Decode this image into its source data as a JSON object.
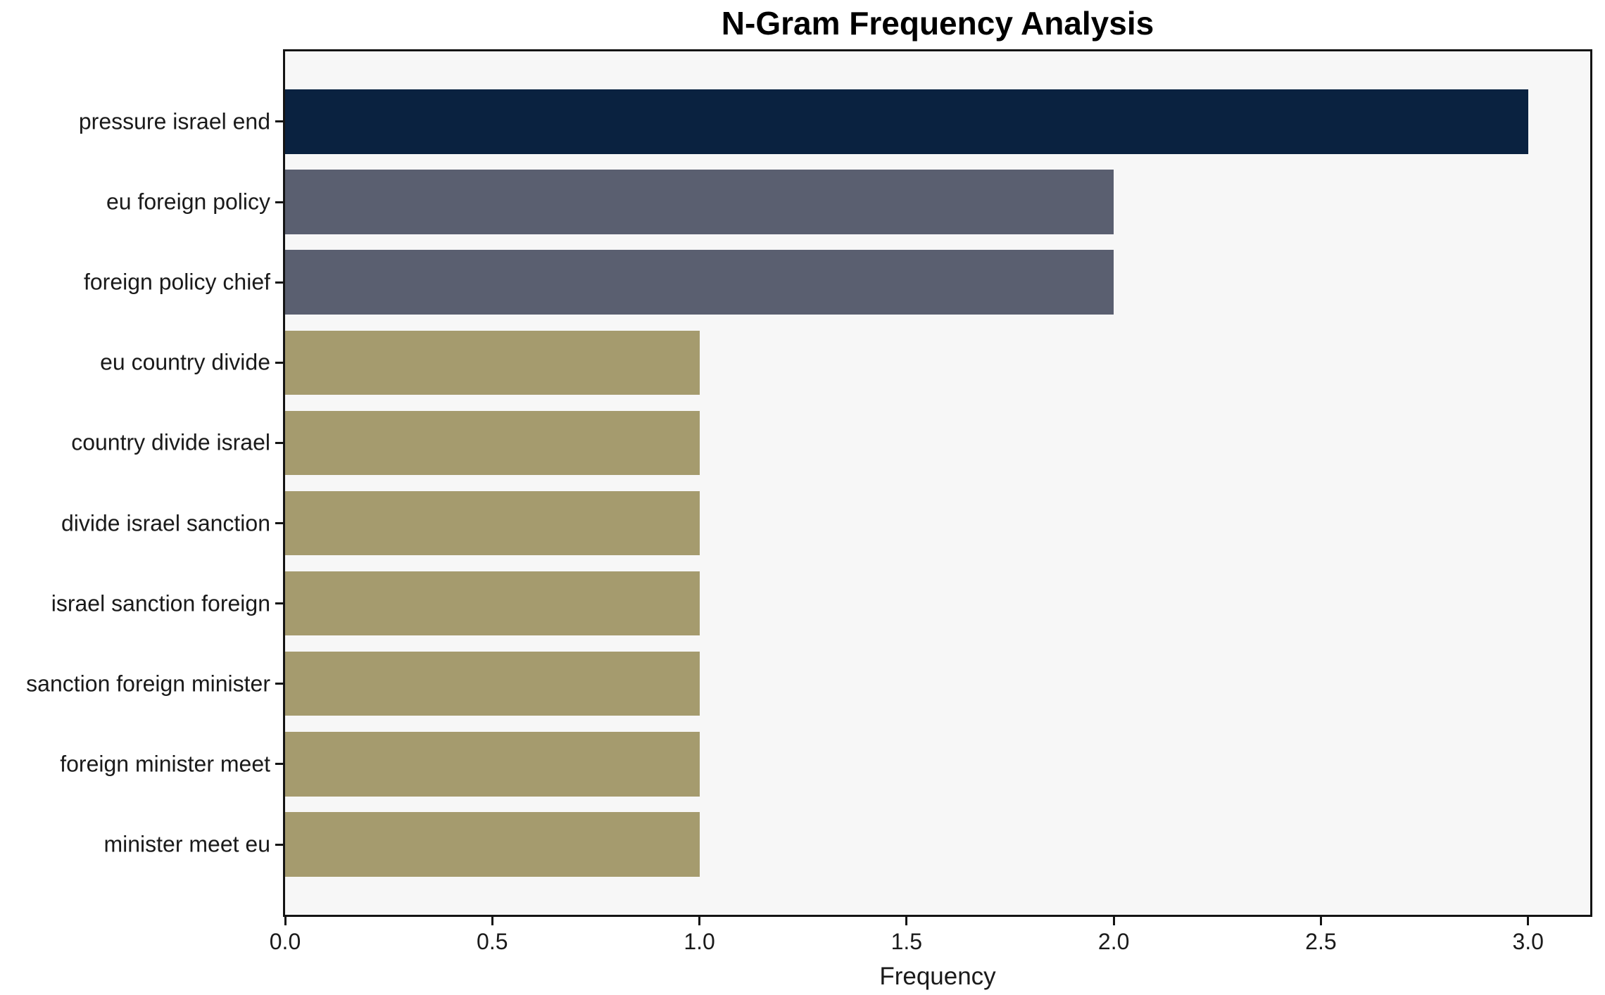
{
  "chart_data": {
    "type": "bar",
    "orientation": "horizontal",
    "title": "N-Gram Frequency Analysis",
    "xlabel": "Frequency",
    "ylabel": "",
    "categories": [
      "pressure israel end",
      "eu foreign policy",
      "foreign policy chief",
      "eu country divide",
      "country divide israel",
      "divide israel sanction",
      "israel sanction foreign",
      "sanction foreign minister",
      "foreign minister meet",
      "minister meet eu"
    ],
    "values": [
      3,
      2,
      2,
      1,
      1,
      1,
      1,
      1,
      1,
      1
    ],
    "bar_colors": [
      "#0A2240",
      "#5A5F70",
      "#5A5F70",
      "#A59B6E",
      "#A59B6E",
      "#A59B6E",
      "#A59B6E",
      "#A59B6E",
      "#A59B6E",
      "#A59B6E"
    ],
    "xlim": [
      0,
      3.15
    ],
    "x_tick_values": [
      0,
      0.5,
      1,
      1.5,
      2,
      2.5,
      3
    ],
    "x_tick_labels": [
      "0.0",
      "0.5",
      "1.0",
      "1.5",
      "2.0",
      "2.5",
      "3.0"
    ],
    "grid": false,
    "legend": "none",
    "plot_background": "#F7F7F7",
    "spine_color": "#141414"
  }
}
